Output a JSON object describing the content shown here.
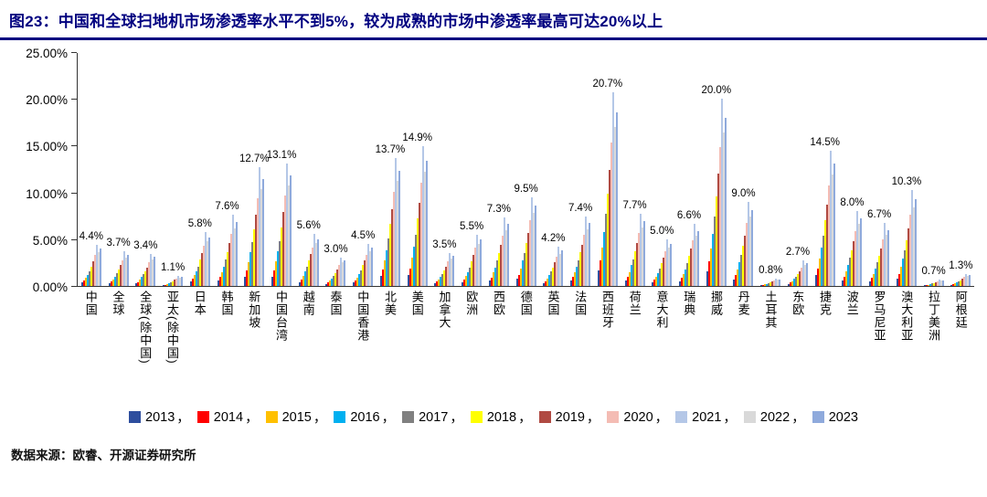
{
  "title": "图23：中国和全球扫地机市场渗透率水平不到5%，较为成熟的市场中渗透率最高可达20%以上",
  "source": "数据来源：欧睿、开源证券研究所",
  "legend_separator": "，",
  "theme": {
    "title_color": "#000080",
    "axis_color": "#333333"
  },
  "chart_data": {
    "type": "bar",
    "title": "中国和全球扫地机市场渗透率水平不到5%，较为成熟的市场中渗透率最高可达20%以上",
    "xlabel": "",
    "ylabel": "",
    "ylim": [
      0,
      25
    ],
    "grid": false,
    "legend_position": "bottom",
    "yticks": [
      0,
      5,
      10,
      15,
      20,
      25
    ],
    "ytick_labels": [
      "0.00%",
      "5.00%",
      "10.00%",
      "15.00%",
      "20.00%",
      "25.00%"
    ],
    "colors": [
      "#2E4E9E",
      "#FF0000",
      "#FFC000",
      "#00B0F0",
      "#808080",
      "#FFFF00",
      "#B04A42",
      "#F4BCB4",
      "#B4C7E7",
      "#D9D9D9",
      "#8FAADC"
    ],
    "categories": [
      "中国",
      "全球",
      "全球(除中国)",
      "亚太(除中国)",
      "日本",
      "韩国",
      "新加坡",
      "中国台湾",
      "越南",
      "泰国",
      "中国香港",
      "北美",
      "美国",
      "加拿大",
      "欧洲",
      "西欧",
      "德国",
      "英国",
      "法国",
      "西班牙",
      "荷兰",
      "意大利",
      "瑞典",
      "挪威",
      "丹麦",
      "土耳其",
      "东欧",
      "捷克",
      "波兰",
      "罗马尼亚",
      "澳大利亚",
      "拉丁美洲",
      "阿根廷"
    ],
    "peak_labels": [
      "4.4%",
      "3.7%",
      "3.4%",
      "1.1%",
      "5.8%",
      "7.6%",
      "12.7%",
      "13.1%",
      "5.6%",
      "3.0%",
      "4.5%",
      "13.7%",
      "14.9%",
      "3.5%",
      "5.5%",
      "7.3%",
      "9.5%",
      "4.2%",
      "7.4%",
      "20.7%",
      "7.7%",
      "5.0%",
      "6.6%",
      "20.0%",
      "9.0%",
      "0.8%",
      "2.7%",
      "14.5%",
      "8.0%",
      "6.7%",
      "10.3%",
      "0.7%",
      "1.3%"
    ],
    "series": [
      {
        "name": "2013",
        "values": [
          0.4,
          0.3,
          0.3,
          0.1,
          0.5,
          0.6,
          1.0,
          1.0,
          0.4,
          0.2,
          0.4,
          1.1,
          1.2,
          0.3,
          0.4,
          0.6,
          0.8,
          0.3,
          0.6,
          1.7,
          0.6,
          0.4,
          0.5,
          1.6,
          0.7,
          0.1,
          0.2,
          1.2,
          0.6,
          0.5,
          0.8,
          0.1,
          0.1
        ]
      },
      {
        "name": "2014",
        "values": [
          0.6,
          0.5,
          0.4,
          0.1,
          0.8,
          1.0,
          1.7,
          1.7,
          0.7,
          0.4,
          0.6,
          1.8,
          1.9,
          0.5,
          0.7,
          0.9,
          1.2,
          0.5,
          1.0,
          2.7,
          1.0,
          0.7,
          0.9,
          2.6,
          1.2,
          0.1,
          0.4,
          1.9,
          1.0,
          0.9,
          1.3,
          0.1,
          0.2
        ]
      },
      {
        "name": "2015",
        "values": [
          0.9,
          0.7,
          0.7,
          0.2,
          1.2,
          1.5,
          2.5,
          2.6,
          1.1,
          0.6,
          0.9,
          2.7,
          3.0,
          0.7,
          1.1,
          1.5,
          1.9,
          0.8,
          1.5,
          4.1,
          1.5,
          1.0,
          1.3,
          4.0,
          1.8,
          0.2,
          0.5,
          2.9,
          1.6,
          1.3,
          2.1,
          0.1,
          0.3
        ]
      },
      {
        "name": "2016",
        "values": [
          1.2,
          1.0,
          1.0,
          0.3,
          1.6,
          2.1,
          3.6,
          3.7,
          1.6,
          0.8,
          1.3,
          3.8,
          4.2,
          1.0,
          1.5,
          2.0,
          2.7,
          1.2,
          2.1,
          5.8,
          2.2,
          1.4,
          1.8,
          5.6,
          2.5,
          0.2,
          0.8,
          4.1,
          2.2,
          1.9,
          2.9,
          0.2,
          0.4
        ]
      },
      {
        "name": "2017",
        "values": [
          1.6,
          1.4,
          1.3,
          0.4,
          2.1,
          2.8,
          4.7,
          4.8,
          2.1,
          1.1,
          1.7,
          5.1,
          5.5,
          1.3,
          2.0,
          2.7,
          3.5,
          1.6,
          2.7,
          7.7,
          2.8,
          1.9,
          2.4,
          7.4,
          3.3,
          0.3,
          1.0,
          5.4,
          3.0,
          2.5,
          3.8,
          0.3,
          0.5
        ]
      },
      {
        "name": "2018",
        "values": [
          2.1,
          1.8,
          1.6,
          0.5,
          2.8,
          3.6,
          6.1,
          6.3,
          2.7,
          1.4,
          2.2,
          6.6,
          7.2,
          1.7,
          2.6,
          3.5,
          4.6,
          2.0,
          3.6,
          9.9,
          3.7,
          2.4,
          3.2,
          9.6,
          4.3,
          0.4,
          1.3,
          7.0,
          3.8,
          3.2,
          4.9,
          0.3,
          0.6
        ]
      },
      {
        "name": "2019",
        "values": [
          2.6,
          2.2,
          2.0,
          0.7,
          3.5,
          4.6,
          7.6,
          7.9,
          3.4,
          1.8,
          2.7,
          8.2,
          8.9,
          2.1,
          3.3,
          4.4,
          5.7,
          2.5,
          4.4,
          12.4,
          4.6,
          3.0,
          4.0,
          12.0,
          5.4,
          0.5,
          1.6,
          8.7,
          4.8,
          4.0,
          6.2,
          0.4,
          0.8
        ]
      },
      {
        "name": "2020",
        "values": [
          3.3,
          2.7,
          2.5,
          0.8,
          4.3,
          5.6,
          9.4,
          9.7,
          4.1,
          2.2,
          3.3,
          10.1,
          11.0,
          2.6,
          4.1,
          5.4,
          7.0,
          3.1,
          5.5,
          15.3,
          5.7,
          3.7,
          4.9,
          14.8,
          6.7,
          0.6,
          2.0,
          10.7,
          5.9,
          5.0,
          7.6,
          0.5,
          1.0
        ]
      },
      {
        "name": "2021",
        "values": [
          4.4,
          3.7,
          3.4,
          1.1,
          5.8,
          7.6,
          12.7,
          13.1,
          5.6,
          3.0,
          4.5,
          13.7,
          14.9,
          3.5,
          5.5,
          7.3,
          9.5,
          4.2,
          7.4,
          20.7,
          7.7,
          5.0,
          6.6,
          20.0,
          9.0,
          0.8,
          2.7,
          14.5,
          8.0,
          6.7,
          10.3,
          0.7,
          1.3
        ]
      },
      {
        "name": "2022",
        "values": [
          3.6,
          3.0,
          2.8,
          0.9,
          4.8,
          6.2,
          10.4,
          10.7,
          4.6,
          2.5,
          3.7,
          11.2,
          12.2,
          2.9,
          4.5,
          6.0,
          7.8,
          3.4,
          6.1,
          17.0,
          6.3,
          4.1,
          5.4,
          16.4,
          7.4,
          0.7,
          2.2,
          11.9,
          6.6,
          5.5,
          8.4,
          0.6,
          1.1
        ]
      },
      {
        "name": "2023",
        "values": [
          4.0,
          3.3,
          3.1,
          1.0,
          5.2,
          6.8,
          11.4,
          11.8,
          5.0,
          2.7,
          4.1,
          12.3,
          13.4,
          3.2,
          5.0,
          6.6,
          8.6,
          3.8,
          6.7,
          18.6,
          6.9,
          4.5,
          5.9,
          18.0,
          8.1,
          0.7,
          2.4,
          13.1,
          7.2,
          6.0,
          9.3,
          0.6,
          1.2
        ]
      }
    ]
  }
}
